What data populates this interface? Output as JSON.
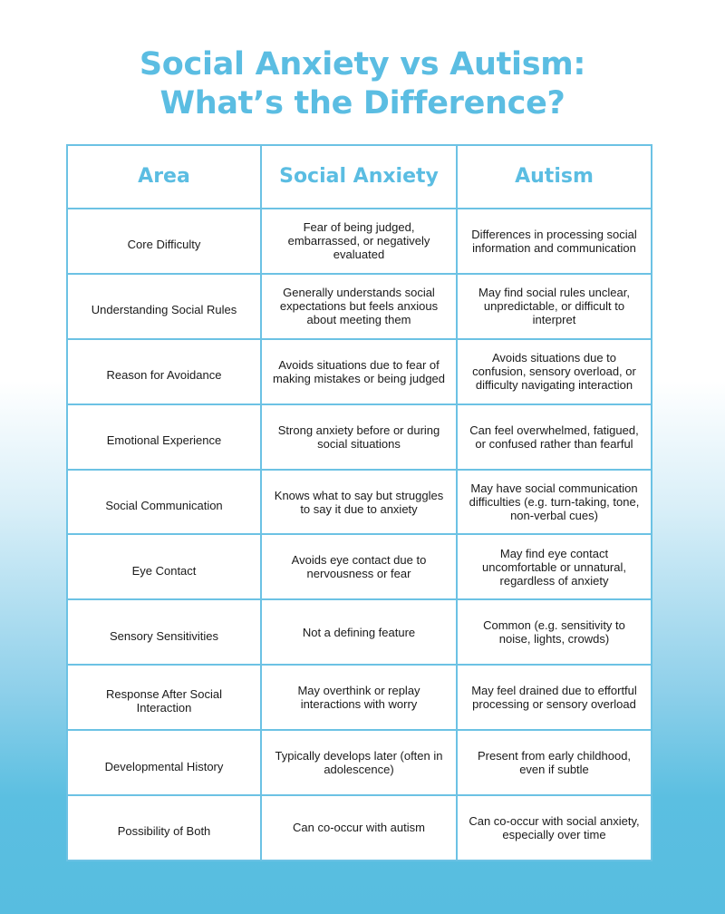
{
  "title": {
    "line1": "Social Anxiety vs Autism:",
    "line2": "What’s the Difference?"
  },
  "table": {
    "headers": [
      "Area",
      "Social Anxiety",
      "Autism"
    ],
    "rows": [
      [
        "Core Difficulty",
        "Fear of being judged, embarrassed, or negatively evaluated",
        "Differences in processing social information and communication"
      ],
      [
        "Understanding Social Rules",
        "Generally understands social expectations but feels anxious about meeting them",
        "May find social rules unclear, unpredictable, or difficult to interpret"
      ],
      [
        "Reason for Avoidance",
        "Avoids situations due to fear of making mistakes or being judged",
        "Avoids situations due to confusion, sensory overload, or difficulty navigating interaction"
      ],
      [
        "Emotional Experience",
        "Strong anxiety before or during social situations",
        "Can feel overwhelmed, fatigued, or confused rather than fearful"
      ],
      [
        "Social Communication",
        "Knows what to say but struggles to say it due to anxiety",
        "May have social communication difficulties (e.g. turn-taking, tone, non-verbal cues)"
      ],
      [
        "Eye Contact",
        "Avoids eye contact due to nervousness or fear",
        "May find eye contact uncomfortable or unnatural, regardless of anxiety"
      ],
      [
        "Sensory Sensitivities",
        "Not a defining feature",
        "Common (e.g. sensitivity to noise, lights, crowds)"
      ],
      [
        "Response After Social Interaction",
        "May overthink or replay interactions with worry",
        "May feel drained due to effortful processing or sensory overload"
      ],
      [
        "Developmental History",
        "Typically develops later (often in adolescence)",
        "Present from early childhood, even if subtle"
      ],
      [
        "Possibility of Both",
        "Can co-occur with autism",
        "Can co-occur with social anxiety, especially over time"
      ]
    ]
  },
  "colors": {
    "accent": "#5bbde2",
    "border": "#6cc2e4",
    "background_bottom": "#57bde0",
    "text": "#1a1a1a"
  }
}
